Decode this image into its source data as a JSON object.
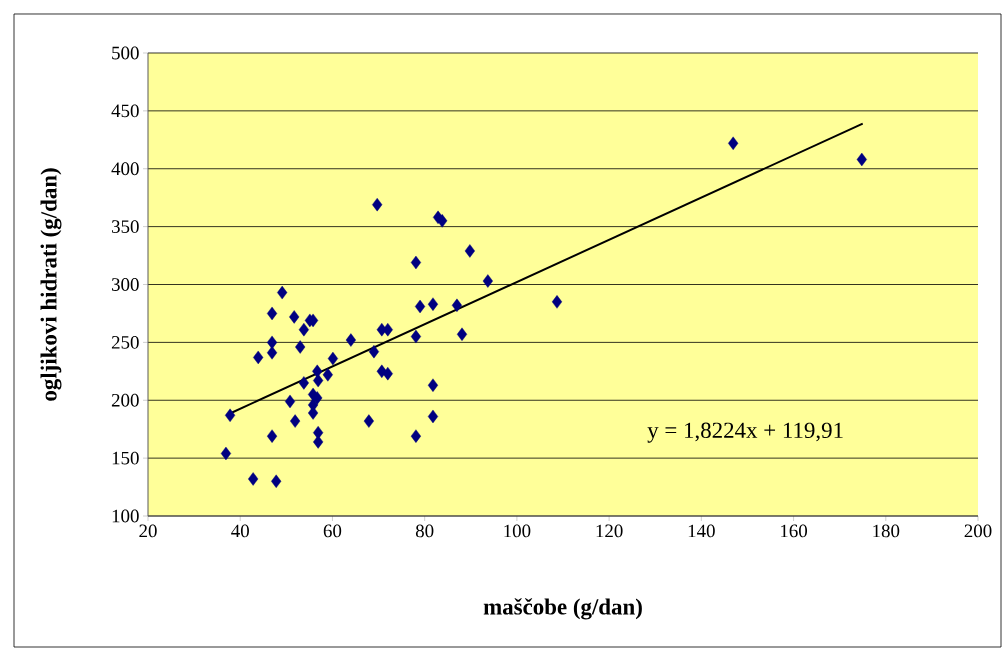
{
  "chart_data": {
    "type": "scatter",
    "xlabel": "maščobe (g/dan)",
    "ylabel": "ogljikovi hidrati (g/dan)",
    "annotations": [
      "y = 1,8224x + 119,91"
    ],
    "xlim": [
      20,
      200
    ],
    "ylim": [
      100,
      500
    ],
    "xticks": [
      20,
      40,
      60,
      80,
      100,
      120,
      140,
      160,
      180,
      200
    ],
    "yticks": [
      100,
      150,
      200,
      250,
      300,
      350,
      400,
      450,
      500
    ],
    "grid": "y",
    "marker": "diamond",
    "series": [
      {
        "color": "#000080",
        "x": [
          36.9,
          37.8,
          42.8,
          47.8,
          43.9,
          46.9,
          46.9,
          46.9,
          46.9,
          49.1,
          50.8,
          51.7,
          51.9,
          53.0,
          53.8,
          53.8,
          55.1,
          55.8,
          56.7,
          56.9,
          59.0,
          55.8,
          56.7,
          55.8,
          55.8,
          56.9,
          56.9,
          60.1,
          64.0,
          67.9,
          69.0,
          69.7,
          70.7,
          72.0,
          70.7,
          72.0,
          78.1,
          78.1,
          78.1,
          79.0,
          81.8,
          81.8,
          81.8,
          82.9,
          83.8,
          87.0,
          88.1,
          89.8,
          93.7,
          108.7,
          146.9,
          174.8
        ],
        "values": [
          154,
          187,
          132,
          130,
          237,
          275,
          250,
          241,
          169,
          293,
          199,
          272,
          182,
          246,
          261,
          215,
          269,
          269,
          225,
          217,
          222,
          205,
          202,
          196,
          189,
          172,
          164,
          236,
          252,
          182,
          242,
          369,
          261,
          261,
          225,
          223,
          319,
          255,
          169,
          281,
          283,
          213,
          186,
          358,
          355,
          282,
          257,
          329,
          303,
          285,
          422,
          408
        ]
      },
      {
        "type": "line",
        "color": "#000000",
        "marker": "none",
        "x": [
          38,
          175
        ],
        "values": [
          189,
          439
        ]
      }
    ]
  }
}
